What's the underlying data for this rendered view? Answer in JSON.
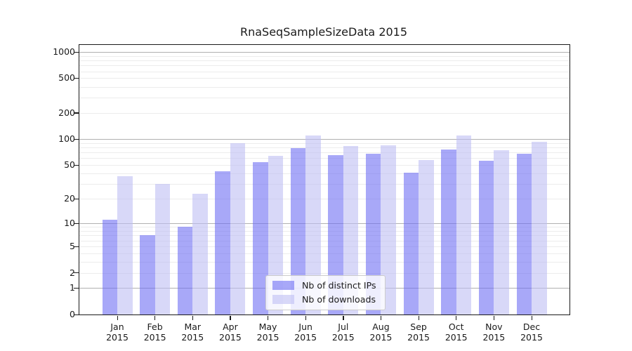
{
  "chart_data": {
    "type": "bar",
    "title": "RnaSeqSampleSizeData 2015",
    "x_tick_year": "2015",
    "categories": [
      "Jan",
      "Feb",
      "Mar",
      "Apr",
      "May",
      "Jun",
      "Jul",
      "Aug",
      "Sep",
      "Oct",
      "Nov",
      "Dec"
    ],
    "series": [
      {
        "name": "Nb of distinct IPs",
        "color": "#6e6ef3",
        "alpha": 0.6,
        "values": [
          11,
          7,
          9,
          42,
          54,
          78,
          65,
          68,
          41,
          76,
          56,
          68
        ]
      },
      {
        "name": "Nb of downloads",
        "color": "#bebef3",
        "alpha": 0.6,
        "values": [
          37,
          30,
          23,
          90,
          64,
          110,
          83,
          85,
          57,
          110,
          74,
          93
        ]
      }
    ],
    "y_axis": {
      "scale": "log1p",
      "max": 1000,
      "tick_labels": [
        0,
        1,
        2,
        5,
        10,
        20,
        50,
        100,
        200,
        500,
        1000
      ],
      "major_gridlines": [
        1,
        10,
        100,
        1000
      ],
      "minor_gridlines": [
        2,
        3,
        4,
        5,
        6,
        7,
        8,
        9,
        20,
        30,
        40,
        50,
        60,
        70,
        80,
        90,
        200,
        300,
        400,
        500,
        600,
        700,
        800,
        900
      ]
    },
    "legend": {
      "position": "lower-center",
      "entries": [
        "Nb of distinct IPs",
        "Nb of downloads"
      ]
    },
    "colors": {
      "major_grid": "#b0b0b0",
      "minor_grid": "#ececec",
      "axis": "#1a1a1a",
      "background": "#ffffff"
    }
  }
}
